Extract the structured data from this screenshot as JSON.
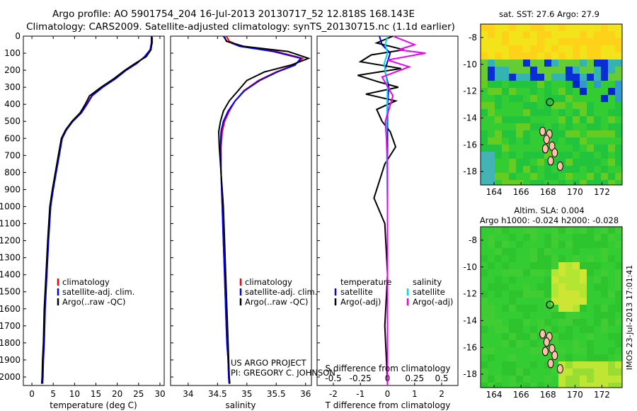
{
  "header": {
    "line1": "Argo profile: AO 5901754_204 16-Jul-2013 20130717_52 12.818S 168.143E",
    "line2": "Climatology: CARS2009. Satellite-adjusted climatology: synTS_20130715.nc (1.1d earlier)"
  },
  "colors": {
    "climatology": "#ff0000",
    "satellite": "#0000ff",
    "argo": "#000000",
    "salinity_satellite": "#00dddd",
    "salinity_argo": "#ee00ee"
  },
  "chart_data": [
    {
      "type": "line",
      "panel": "temperature",
      "xlabel": "temperature (deg C)",
      "ylabel": "",
      "xlim": [
        -2,
        31
      ],
      "ylim": [
        2050,
        0
      ],
      "xticks": [
        0,
        5,
        10,
        15,
        20,
        25,
        30
      ],
      "yticks": [
        0,
        100,
        200,
        300,
        400,
        500,
        600,
        700,
        800,
        900,
        1000,
        1100,
        1200,
        1300,
        1400,
        1500,
        1600,
        1700,
        1800,
        1900,
        2000
      ],
      "legend": [
        "climatology",
        "satellite-adj. clim.",
        "Argo(..raw -QC)"
      ],
      "legend_position": "lower-middle",
      "series": [
        {
          "name": "climatology",
          "x": [
            28.2,
            28.2,
            27.8,
            26.5,
            24.5,
            22,
            19.5,
            16.5,
            14,
            12.8,
            11.5,
            9.5,
            8,
            7,
            6.3,
            5.6,
            4.9,
            4.3,
            3.8,
            3.4,
            3.0,
            2.8,
            2.6,
            2.5,
            2.4
          ],
          "y": [
            0,
            40,
            80,
            120,
            160,
            200,
            250,
            300,
            350,
            400,
            450,
            500,
            550,
            600,
            700,
            800,
            900,
            1000,
            1200,
            1400,
            1600,
            1800,
            1900,
            2000,
            2040
          ]
        },
        {
          "name": "satellite-adj. clim.",
          "x": [
            28.0,
            28.0,
            27.7,
            26.4,
            24.6,
            22.1,
            19.6,
            16.6,
            14.1,
            12.9,
            11.6,
            9.6,
            8.1,
            7.1,
            6.4,
            5.7,
            5.0,
            4.4,
            3.9,
            3.5,
            3.1,
            2.9,
            2.7,
            2.6,
            2.5
          ],
          "y": [
            0,
            40,
            80,
            120,
            160,
            200,
            250,
            300,
            350,
            400,
            450,
            500,
            550,
            600,
            700,
            800,
            900,
            1000,
            1200,
            1400,
            1600,
            1800,
            1900,
            2000,
            2040
          ]
        },
        {
          "name": "Argo(..raw -QC)",
          "x": [
            28.1,
            28.1,
            27.9,
            26.8,
            24.2,
            21.8,
            19.2,
            16.2,
            13.5,
            12.5,
            11.3,
            9.4,
            7.9,
            6.9,
            6.2,
            5.5,
            4.8,
            4.2,
            3.7,
            3.3,
            2.9,
            2.7,
            2.5,
            2.4,
            2.3
          ],
          "y": [
            5,
            40,
            80,
            120,
            160,
            200,
            250,
            300,
            350,
            400,
            450,
            500,
            550,
            600,
            700,
            800,
            900,
            1000,
            1200,
            1400,
            1600,
            1800,
            1900,
            2000,
            2040
          ]
        }
      ]
    },
    {
      "type": "line",
      "panel": "salinity",
      "xlabel": "salinity",
      "xlim": [
        33.7,
        36.1
      ],
      "ylim": [
        2050,
        0
      ],
      "xticks": [
        34,
        34.5,
        35,
        35.5,
        36
      ],
      "legend": [
        "climatology",
        "satellite-adj. clim.",
        "Argo(..raw -QC)"
      ],
      "annotation_line1": "US ARGO PROJECT",
      "annotation_line2": "PI: GREGORY C. JOHNSON",
      "series": [
        {
          "name": "climatology",
          "x": [
            34.65,
            34.7,
            34.9,
            35.5,
            35.95,
            35.8,
            35.5,
            35.2,
            34.95,
            34.8,
            34.7,
            34.62,
            34.58,
            34.56,
            34.56,
            34.58,
            34.6,
            34.62,
            34.64,
            34.66,
            34.68,
            34.69,
            34.7,
            34.7
          ],
          "y": [
            0,
            30,
            60,
            90,
            130,
            170,
            210,
            260,
            320,
            380,
            440,
            500,
            560,
            650,
            800,
            1000,
            1200,
            1400,
            1600,
            1800,
            1900,
            2000,
            2040,
            2040
          ]
        },
        {
          "name": "satellite-adj. clim.",
          "x": [
            34.6,
            34.66,
            34.88,
            35.45,
            35.92,
            35.82,
            35.52,
            35.22,
            34.96,
            34.8,
            34.68,
            34.6,
            34.56,
            34.55,
            34.56,
            34.58,
            34.6,
            34.62,
            34.64,
            34.66,
            34.68,
            34.69,
            34.7,
            34.7
          ],
          "y": [
            0,
            30,
            60,
            90,
            130,
            170,
            210,
            260,
            320,
            380,
            440,
            500,
            560,
            650,
            800,
            1000,
            1200,
            1400,
            1600,
            1800,
            1900,
            2000,
            2040,
            2040
          ]
        },
        {
          "name": "Argo(..raw -QC)",
          "x": [
            34.62,
            34.65,
            34.95,
            35.7,
            36.05,
            35.75,
            35.3,
            35.0,
            34.85,
            34.7,
            34.6,
            34.55,
            34.52,
            34.53,
            34.56,
            34.6,
            34.62,
            34.64,
            34.66,
            34.68,
            34.69,
            34.7,
            34.71,
            34.71
          ],
          "y": [
            5,
            30,
            60,
            90,
            130,
            170,
            210,
            260,
            320,
            380,
            440,
            500,
            560,
            650,
            800,
            1000,
            1200,
            1400,
            1600,
            1800,
            1900,
            2000,
            2040,
            2040
          ]
        }
      ]
    },
    {
      "type": "line",
      "panel": "difference",
      "xlabel_bottom": "T difference from climatology",
      "xlabel_top": "S difference from climatology",
      "xlim": [
        -2.6,
        2.6
      ],
      "ylim": [
        2050,
        0
      ],
      "xticks_T": [
        -2,
        -1,
        0,
        1,
        2
      ],
      "xticks_S": [
        -0.5,
        -0.25,
        0,
        0.25,
        0.5
      ],
      "legend_temperature_title": "temperature",
      "legend_salinity_title": "salinity",
      "legend_temperature": [
        "satellite",
        "Argo(-adj)"
      ],
      "legend_salinity": [
        "satellite",
        "Argo(-adj)"
      ],
      "series": [
        {
          "name": "T satellite",
          "x": [
            -0.3,
            -0.2,
            0.1,
            0.0,
            -0.1,
            0.05,
            0.0,
            0.0,
            0.0,
            0.0,
            0.0
          ],
          "y": [
            0,
            50,
            100,
            150,
            200,
            300,
            400,
            600,
            1000,
            1500,
            2040
          ]
        },
        {
          "name": "T Argo(-adj)",
          "x": [
            0.2,
            -0.4,
            0.6,
            -0.6,
            -1.0,
            0.5,
            -1.1,
            -0.3,
            0.4,
            -0.8,
            0.3,
            -0.4,
            -0.2,
            0.1,
            0.3,
            -0.1,
            -0.5,
            -0.1,
            0.0,
            -0.1,
            0.0
          ],
          "y": [
            0,
            40,
            80,
            110,
            150,
            190,
            230,
            270,
            300,
            340,
            380,
            430,
            500,
            560,
            650,
            750,
            950,
            1100,
            1400,
            1700,
            2040
          ]
        },
        {
          "name": "S satellite",
          "x": [
            0.0,
            -0.02,
            0.0,
            -0.03,
            0.0,
            -0.01,
            0.0,
            0.0,
            0.0
          ],
          "y": [
            0,
            50,
            100,
            160,
            300,
            600,
            1000,
            1500,
            2040
          ]
        },
        {
          "name": "S Argo(-adj)",
          "x": [
            0.05,
            0.25,
            0.1,
            0.35,
            0.0,
            0.2,
            -0.05,
            0.05,
            -0.02,
            0.0,
            0.0,
            0.0,
            0.0
          ],
          "y": [
            0,
            50,
            80,
            100,
            140,
            180,
            240,
            350,
            500,
            700,
            1100,
            1500,
            2040
          ]
        }
      ]
    },
    {
      "type": "heatmap",
      "panel": "sst-map",
      "title": "sat. SST: 27.6 Argo: 27.9",
      "xticks": [
        164,
        166,
        168,
        170,
        172
      ],
      "yticks": [
        -8,
        -10,
        -12,
        -14,
        -16,
        -18
      ],
      "xlim": [
        163,
        173.5
      ],
      "ylim": [
        -19,
        -7
      ],
      "marker": {
        "lon": 168.143,
        "lat": -12.818
      }
    },
    {
      "type": "heatmap",
      "panel": "sla-map",
      "title": "Altim. SLA: 0.004",
      "subtitle": "Argo h1000: -0.024 h2000: -0.028",
      "xticks": [
        164,
        166,
        168,
        170,
        172
      ],
      "yticks": [
        -8,
        -10,
        -12,
        -14,
        -16,
        -18
      ],
      "xlim": [
        163,
        173.5
      ],
      "ylim": [
        -19,
        -7
      ],
      "marker": {
        "lon": 168.143,
        "lat": -12.818
      }
    }
  ],
  "watermark": "IMOS 23-Jul-2013 17:01:41"
}
